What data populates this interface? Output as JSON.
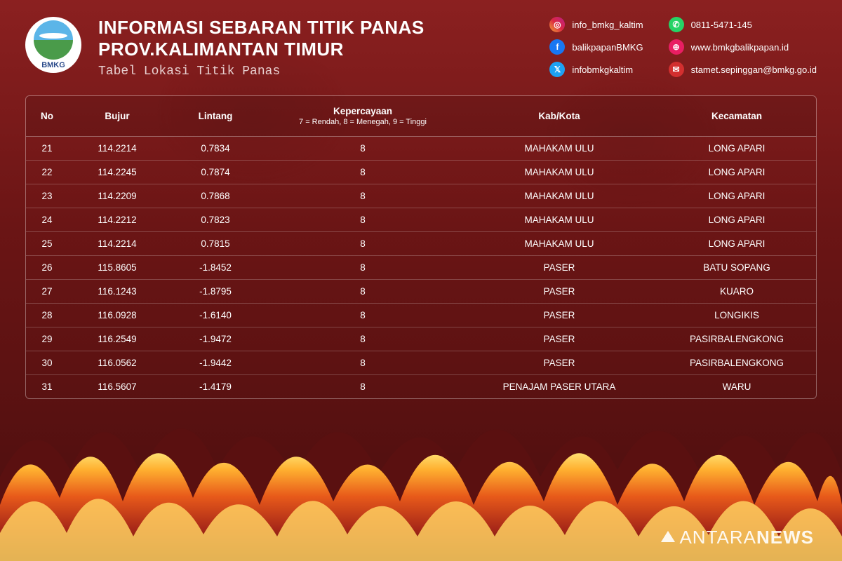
{
  "org": {
    "abbr": "BMKG"
  },
  "header": {
    "title_line1": "INFORMASI SEBARAN TITIK PANAS",
    "title_line2": "PROV.KALIMANTAN TIMUR",
    "subtitle": "Tabel Lokasi Titik Panas"
  },
  "socials": {
    "instagram": "info_bmkg_kaltim",
    "facebook": "balikpapanBMKG",
    "twitter": "infobmkgkaltim",
    "whatsapp": "0811-5471-145",
    "website": "www.bmkgbalikpapan.id",
    "email": "stamet.sepinggan@bmkg.go.id"
  },
  "table": {
    "columns": {
      "no": "No",
      "bujur": "Bujur",
      "lintang": "Lintang",
      "conf_main": "Kepercayaan",
      "conf_sub": "7 = Rendah, 8 = Menegah, 9 = Tinggi",
      "kab": "Kab/Kota",
      "kec": "Kecamatan"
    },
    "rows": [
      {
        "no": "21",
        "bujur": "114.2214",
        "lintang": "0.7834",
        "conf": "8",
        "kab": "MAHAKAM ULU",
        "kec": "LONG APARI"
      },
      {
        "no": "22",
        "bujur": "114.2245",
        "lintang": "0.7874",
        "conf": "8",
        "kab": "MAHAKAM ULU",
        "kec": "LONG APARI"
      },
      {
        "no": "23",
        "bujur": "114.2209",
        "lintang": "0.7868",
        "conf": "8",
        "kab": "MAHAKAM ULU",
        "kec": "LONG APARI"
      },
      {
        "no": "24",
        "bujur": "114.2212",
        "lintang": "0.7823",
        "conf": "8",
        "kab": "MAHAKAM ULU",
        "kec": "LONG APARI"
      },
      {
        "no": "25",
        "bujur": "114.2214",
        "lintang": "0.7815",
        "conf": "8",
        "kab": "MAHAKAM ULU",
        "kec": "LONG APARI"
      },
      {
        "no": "26",
        "bujur": "115.8605",
        "lintang": "-1.8452",
        "conf": "8",
        "kab": "PASER",
        "kec": "BATU SOPANG"
      },
      {
        "no": "27",
        "bujur": "116.1243",
        "lintang": "-1.8795",
        "conf": "8",
        "kab": "PASER",
        "kec": "KUARO"
      },
      {
        "no": "28",
        "bujur": "116.0928",
        "lintang": "-1.6140",
        "conf": "8",
        "kab": "PASER",
        "kec": "LONGIKIS"
      },
      {
        "no": "29",
        "bujur": "116.2549",
        "lintang": "-1.9472",
        "conf": "8",
        "kab": "PASER",
        "kec": "PASIRBALENGKONG"
      },
      {
        "no": "30",
        "bujur": "116.0562",
        "lintang": "-1.9442",
        "conf": "8",
        "kab": "PASER",
        "kec": "PASIRBALENGKONG"
      },
      {
        "no": "31",
        "bujur": "116.5607",
        "lintang": "-1.4179",
        "conf": "8",
        "kab": "PENAJAM PASER UTARA",
        "kec": "WARU"
      }
    ]
  },
  "watermark": {
    "text_a": "ANTARA",
    "text_b": "NEWS"
  },
  "style": {
    "flame_colors": [
      "#4a0e0e",
      "#a82818",
      "#e85a1a",
      "#ffb030",
      "#ffe070"
    ]
  }
}
